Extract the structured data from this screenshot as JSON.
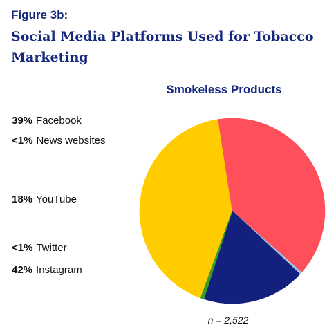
{
  "figure_label": "Figure 3b:",
  "title": "Social Media Platforms Used for Tobacco Marketing",
  "chart_data": {
    "type": "pie",
    "title": "Smokeless Products",
    "note": "n = 2,522",
    "slices": [
      {
        "label": "Instagram",
        "pct_label": "42%",
        "value": 42,
        "color": "#FFCC00"
      },
      {
        "label": "Facebook",
        "pct_label": "39%",
        "value": 39,
        "color": "#FF4F5A"
      },
      {
        "label": "News websites",
        "pct_label": "<1%",
        "value": 0.4,
        "color": "#9EC8E8"
      },
      {
        "label": "YouTube",
        "pct_label": "18%",
        "value": 18,
        "color": "#14207E"
      },
      {
        "label": "Twitter",
        "pct_label": "<1%",
        "value": 0.6,
        "color": "#3A9A2A"
      }
    ],
    "legend_order": [
      "Facebook",
      "News websites",
      "YouTube",
      "Twitter",
      "Instagram"
    ]
  }
}
